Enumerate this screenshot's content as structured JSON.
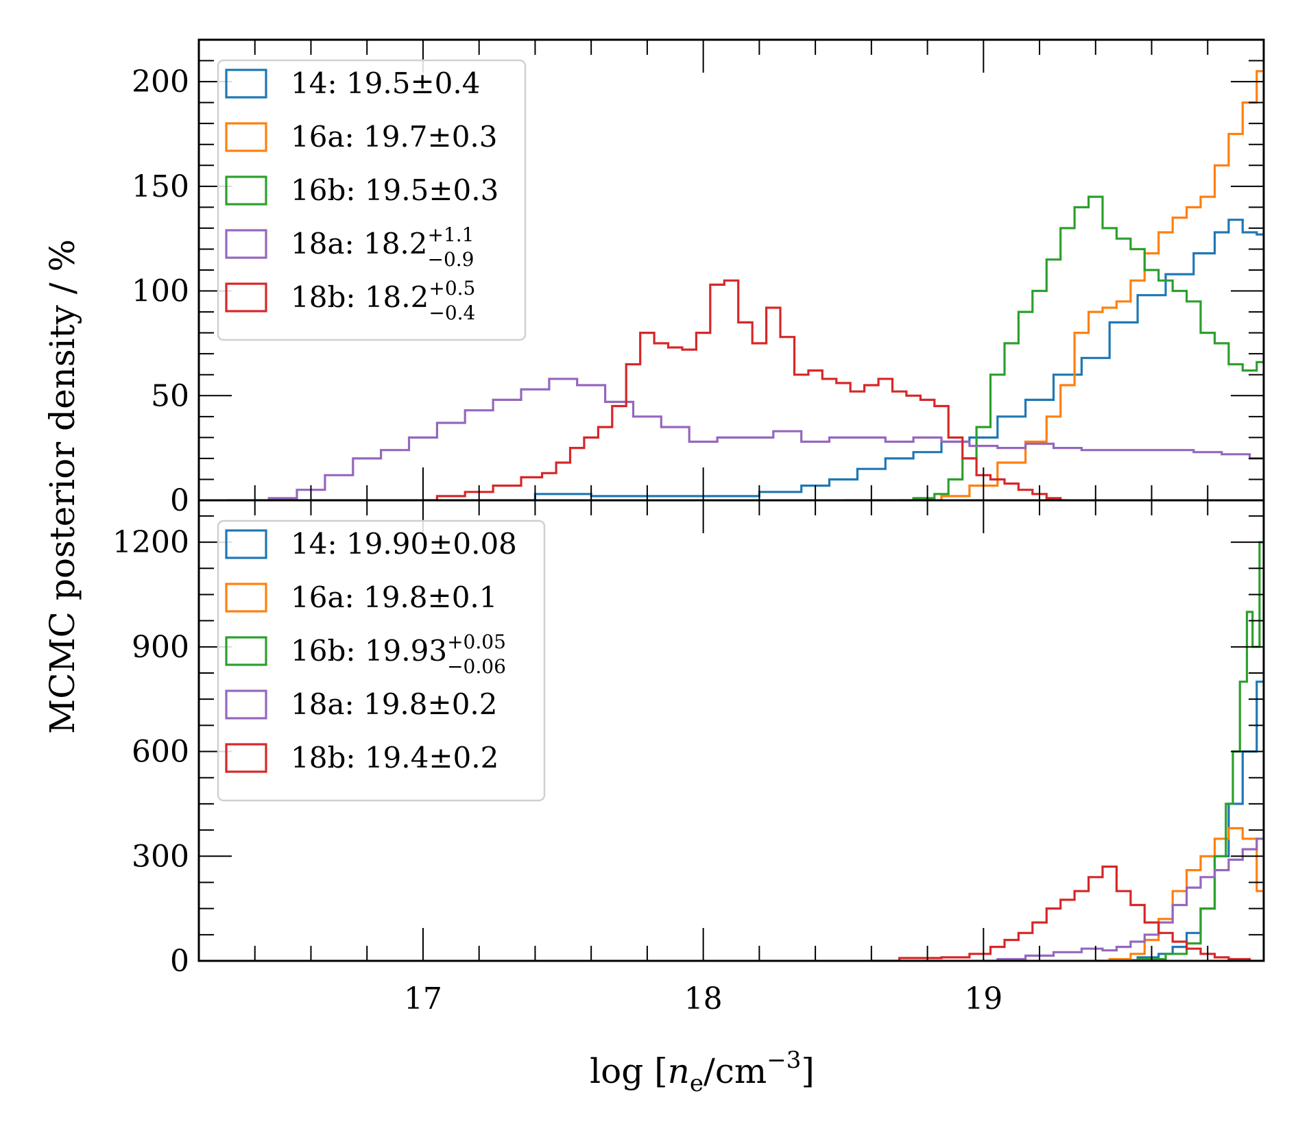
{
  "chart_data": [
    {
      "type": "line",
      "drawstyle": "steps-mid",
      "title": "",
      "xlabel": "log [n_e/cm^-3]",
      "ylabel": "MCMC posterior density / %",
      "xlim": [
        16.2,
        20.0
      ],
      "ylim": [
        0,
        220
      ],
      "yticks": [
        "0",
        "50",
        "100",
        "150",
        "200"
      ],
      "legend_position": "upper-left",
      "series": [
        {
          "key": "s14",
          "name": "14: 19.5±0.4",
          "color": "#1f77b4",
          "x": [
            16.3,
            16.5,
            16.7,
            16.9,
            17.1,
            17.3,
            17.5,
            17.7,
            17.9,
            18.1,
            18.3,
            18.4,
            18.5,
            18.6,
            18.7,
            18.8,
            18.9,
            19.0,
            19.1,
            19.2,
            19.3,
            19.4,
            19.5,
            19.6,
            19.7,
            19.8,
            19.85,
            19.9,
            19.95,
            20.0
          ],
          "y": [
            0,
            0,
            0,
            0,
            0,
            0,
            3,
            2,
            2,
            2,
            4,
            7,
            10,
            15,
            20,
            23,
            28,
            30,
            40,
            48,
            60,
            68,
            85,
            98,
            108,
            118,
            128,
            134,
            128,
            127
          ]
        },
        {
          "key": "s16a",
          "name": "16a: 19.7±0.3",
          "color": "#ff7f0e",
          "x": [
            18.7,
            18.8,
            18.9,
            19.0,
            19.1,
            19.2,
            19.25,
            19.3,
            19.35,
            19.4,
            19.45,
            19.5,
            19.55,
            19.6,
            19.65,
            19.7,
            19.75,
            19.8,
            19.85,
            19.9,
            19.95,
            20.0
          ],
          "y": [
            0,
            0,
            2,
            7,
            18,
            28,
            40,
            55,
            80,
            90,
            92,
            95,
            105,
            118,
            128,
            135,
            140,
            145,
            160,
            175,
            190,
            205
          ]
        },
        {
          "key": "s16b",
          "name": "16b: 19.5±0.3",
          "color": "#2ca02c",
          "x": [
            18.5,
            18.7,
            18.8,
            18.85,
            18.9,
            18.95,
            19.0,
            19.05,
            19.1,
            19.15,
            19.2,
            19.25,
            19.3,
            19.35,
            19.4,
            19.45,
            19.5,
            19.55,
            19.6,
            19.65,
            19.7,
            19.75,
            19.8,
            19.85,
            19.9,
            19.95,
            20.0
          ],
          "y": [
            0,
            0,
            1,
            3,
            10,
            20,
            35,
            60,
            75,
            90,
            100,
            115,
            130,
            140,
            145,
            130,
            125,
            120,
            110,
            105,
            100,
            95,
            80,
            75,
            65,
            62,
            66
          ]
        },
        {
          "key": "s18a",
          "name": "18a: 18.2^{+1.1}_{-0.9}",
          "color": "#9467bd",
          "x": [
            16.4,
            16.5,
            16.6,
            16.7,
            16.8,
            16.9,
            17.0,
            17.1,
            17.2,
            17.3,
            17.4,
            17.5,
            17.6,
            17.7,
            17.8,
            17.9,
            18.0,
            18.1,
            18.2,
            18.3,
            18.4,
            18.5,
            18.6,
            18.7,
            18.8,
            18.9,
            19.0,
            19.1,
            19.2,
            19.3,
            19.4,
            19.5,
            19.6,
            19.7,
            19.8,
            19.9,
            20.0
          ],
          "y": [
            0,
            1,
            5,
            12,
            20,
            24,
            30,
            37,
            43,
            48,
            53,
            58,
            55,
            47,
            40,
            35,
            28,
            30,
            30,
            33,
            28,
            30,
            30,
            28,
            30,
            28,
            26,
            25,
            27,
            25,
            24,
            24,
            24,
            24,
            23,
            22,
            20
          ]
        },
        {
          "key": "s18b",
          "name": "18b: 18.2^{+0.5}_{-0.4}",
          "color": "#d62728",
          "x": [
            17.0,
            17.1,
            17.2,
            17.3,
            17.4,
            17.45,
            17.5,
            17.55,
            17.6,
            17.65,
            17.7,
            17.75,
            17.8,
            17.85,
            17.9,
            17.95,
            18.0,
            18.05,
            18.1,
            18.15,
            18.2,
            18.25,
            18.3,
            18.35,
            18.4,
            18.45,
            18.5,
            18.55,
            18.6,
            18.65,
            18.7,
            18.75,
            18.8,
            18.85,
            18.9,
            18.95,
            19.0,
            19.05,
            19.1,
            19.15,
            19.2,
            19.25,
            19.3
          ],
          "y": [
            0,
            2,
            4,
            7,
            11,
            13,
            18,
            25,
            30,
            35,
            45,
            65,
            80,
            75,
            73,
            72,
            80,
            103,
            105,
            85,
            75,
            92,
            78,
            60,
            62,
            58,
            56,
            52,
            55,
            58,
            52,
            50,
            48,
            45,
            30,
            20,
            12,
            10,
            8,
            5,
            3,
            1,
            0
          ]
        }
      ]
    },
    {
      "type": "line",
      "drawstyle": "steps-mid",
      "title": "",
      "xlabel": "log [n_e/cm^-3]",
      "ylabel": "MCMC posterior density / %",
      "xlim": [
        16.2,
        20.0
      ],
      "ylim": [
        0,
        1320
      ],
      "yticks": [
        "0",
        "300",
        "600",
        "900",
        "1200"
      ],
      "xticks": [
        "17",
        "18",
        "19"
      ],
      "legend_position": "upper-left",
      "series": [
        {
          "key": "s14",
          "name": "14: 19.90±0.08",
          "color": "#1f77b4",
          "x": [
            19.4,
            19.5,
            19.6,
            19.65,
            19.7,
            19.75,
            19.8,
            19.85,
            19.9,
            19.95,
            20.0
          ],
          "y": [
            0,
            2,
            10,
            20,
            40,
            80,
            150,
            300,
            450,
            600,
            800
          ]
        },
        {
          "key": "s16a",
          "name": "16a: 19.8±0.1",
          "color": "#ff7f0e",
          "x": [
            19.4,
            19.5,
            19.55,
            19.6,
            19.65,
            19.7,
            19.75,
            19.8,
            19.85,
            19.9,
            19.95,
            20.0
          ],
          "y": [
            0,
            5,
            20,
            60,
            120,
            200,
            260,
            300,
            350,
            380,
            350,
            200
          ]
        },
        {
          "key": "s16b",
          "name": "16b: 19.93^{+0.05}_{-0.06}",
          "color": "#2ca02c",
          "x": [
            19.5,
            19.6,
            19.7,
            19.75,
            19.8,
            19.85,
            19.88,
            19.9,
            19.93,
            19.95,
            19.97,
            20.0
          ],
          "y": [
            0,
            5,
            20,
            50,
            150,
            300,
            450,
            600,
            800,
            1000,
            900,
            1200
          ]
        },
        {
          "key": "s18a",
          "name": "18a: 19.8±0.2",
          "color": "#9467bd",
          "x": [
            19.0,
            19.1,
            19.2,
            19.3,
            19.4,
            19.45,
            19.5,
            19.55,
            19.6,
            19.65,
            19.7,
            19.75,
            19.8,
            19.85,
            19.9,
            19.95,
            20.0
          ],
          "y": [
            0,
            5,
            15,
            25,
            35,
            30,
            40,
            55,
            75,
            110,
            160,
            210,
            240,
            260,
            290,
            320,
            350
          ]
        },
        {
          "key": "s18b",
          "name": "18b: 19.4±0.2",
          "color": "#d62728",
          "x": [
            18.6,
            18.8,
            18.9,
            19.0,
            19.05,
            19.1,
            19.15,
            19.2,
            19.25,
            19.3,
            19.35,
            19.4,
            19.45,
            19.5,
            19.55,
            19.6,
            19.65,
            19.7,
            19.75,
            19.8,
            19.85,
            19.9,
            20.0
          ],
          "y": [
            0,
            8,
            10,
            20,
            40,
            60,
            80,
            110,
            150,
            175,
            200,
            240,
            270,
            200,
            160,
            110,
            80,
            55,
            35,
            20,
            10,
            5,
            0
          ]
        }
      ]
    }
  ]
}
